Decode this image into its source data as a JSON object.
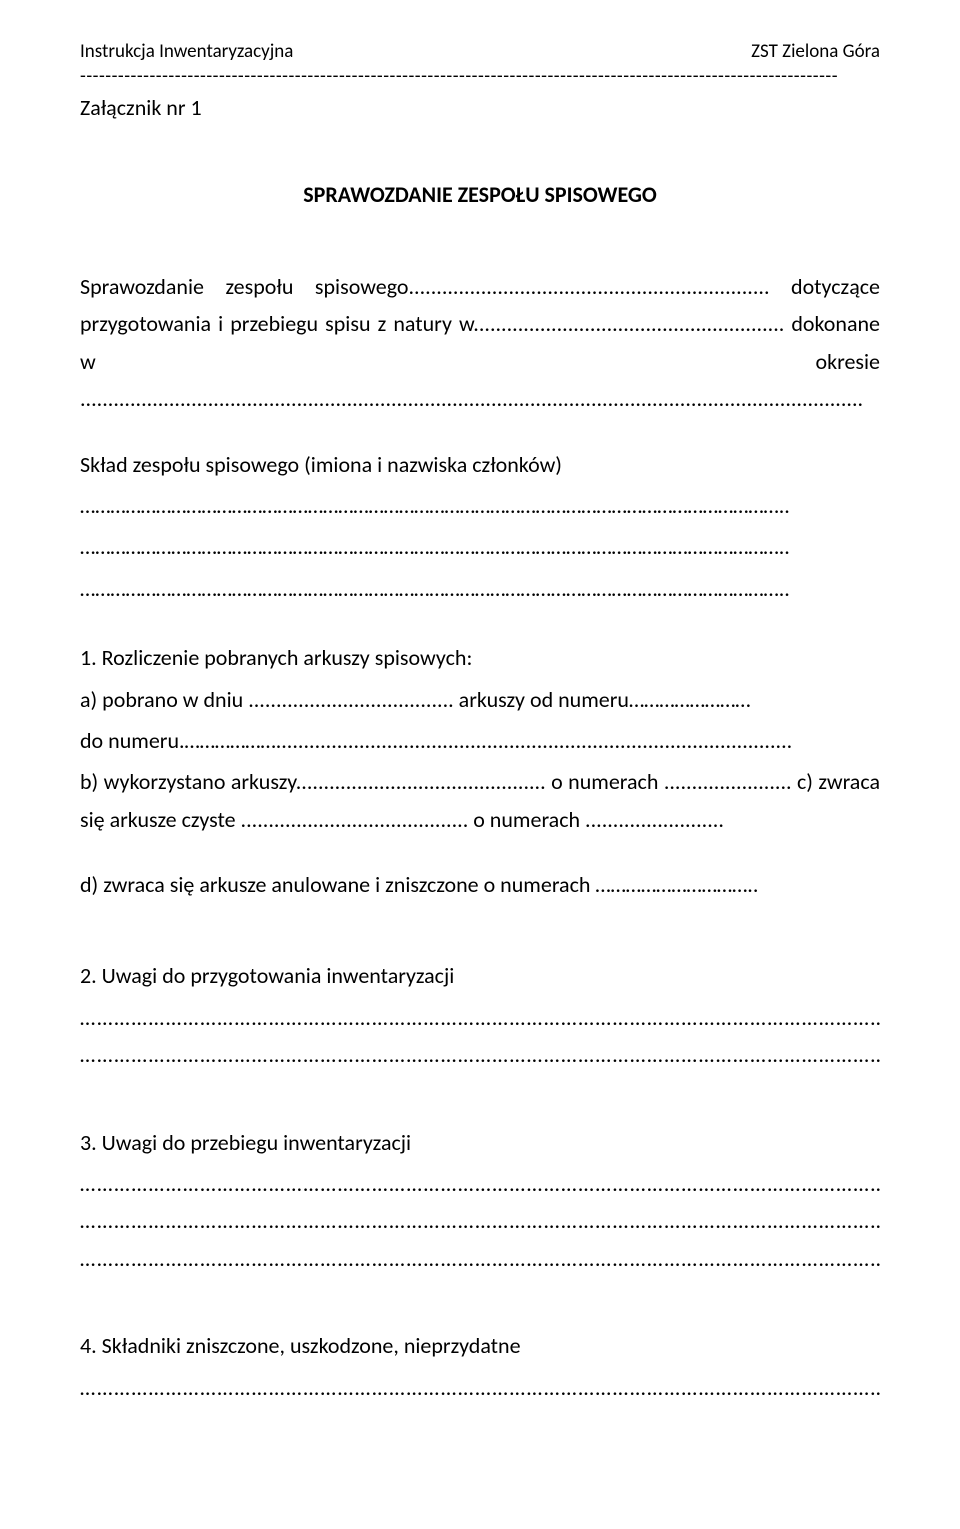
{
  "header": {
    "left": "Instrukcja Inwentaryzacyjna",
    "right": "ZST Zielona Góra",
    "separator": "------------------------------------------------------------------------------------------------------------------------"
  },
  "attachment": "Załącznik nr 1",
  "title": "SPRAWOZDANIE ZESPOŁU SPISOWEGO",
  "intro": "Sprawozdanie zespołu spisowego................................................................. dotyczące przygotowania i przebiegu spisu z natury w........................................................ dokonane w okresie .............................................................................................................................................",
  "team_label": "Skład zespołu spisowego (imiona i nazwiska członków)",
  "blank_dots": "…………………………………………………………………………………………………………………………..",
  "section1_title": "1. Rozliczenie pobranych arkuszy spisowych:",
  "section1_a": "a) pobrano w dniu ..................................... arkuszy od numeru……………………",
  "section1_a2": "do numeru.……………….............................................................................................",
  "section1_bc": "b) wykorzystano arkuszy............................................. o numerach ....................... c) zwraca się arkusze czyste ......................................... o numerach .........................",
  "section1_d": "d) zwraca się arkusze anulowane i zniszczone o numerach …………………………..",
  "section2_title": "2. Uwagi do przygotowania inwentaryzacji",
  "section3_title": "3. Uwagi do przebiegu inwentaryzacji",
  "section4_title": "4. Składniki zniszczone, uszkodzone, nieprzydatne",
  "dots_row": "…………………………………………………………………………………………………………………………………",
  "dots_row_alt": "………………………………………………………………………………………………………………………………..",
  "dots_row_alt2": "………………………………………………………………………………………………………………………………."
}
